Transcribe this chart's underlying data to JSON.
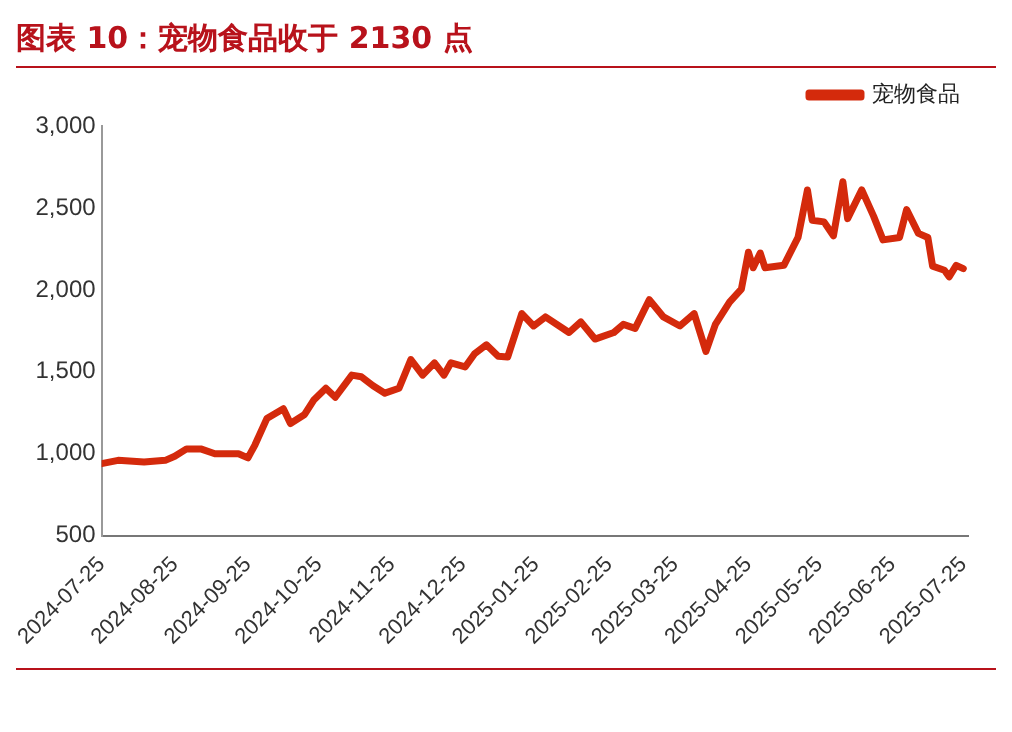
{
  "chart_data": {
    "type": "line",
    "title": "图表 10：宠物食品收于 2130 点",
    "series": [
      {
        "name": "宠物食品",
        "color": "#d42a0c",
        "x": [
          "2024-07-25",
          "2024-08-01",
          "2024-08-12",
          "2024-08-21",
          "2024-08-25",
          "2024-08-30",
          "2024-09-05",
          "2024-09-11",
          "2024-09-21",
          "2024-09-25",
          "2024-09-28",
          "2024-10-03",
          "2024-10-10",
          "2024-10-13",
          "2024-10-19",
          "2024-10-23",
          "2024-10-28",
          "2024-11-01",
          "2024-11-08",
          "2024-11-12",
          "2024-11-17",
          "2024-11-22",
          "2024-11-28",
          "2024-12-03",
          "2024-12-08",
          "2024-12-13",
          "2024-12-17",
          "2024-12-20",
          "2024-12-26",
          "2024-12-30",
          "2025-01-04",
          "2025-01-09",
          "2025-01-13",
          "2025-01-19",
          "2025-01-24",
          "2025-01-29",
          "2025-02-08",
          "2025-02-13",
          "2025-02-19",
          "2025-02-27",
          "2025-03-03",
          "2025-03-08",
          "2025-03-14",
          "2025-03-20",
          "2025-03-27",
          "2025-04-02",
          "2025-04-07",
          "2025-04-11",
          "2025-04-17",
          "2025-04-22",
          "2025-04-25",
          "2025-04-27",
          "2025-04-30",
          "2025-05-02",
          "2025-05-10",
          "2025-05-16",
          "2025-05-20",
          "2025-05-22",
          "2025-05-27",
          "2025-05-31",
          "2025-06-04",
          "2025-06-06",
          "2025-06-12",
          "2025-06-17",
          "2025-06-21",
          "2025-06-28",
          "2025-07-01",
          "2025-07-06",
          "2025-07-10",
          "2025-07-12",
          "2025-07-17",
          "2025-07-19",
          "2025-07-22",
          "2025-07-25"
        ],
        "values": [
          940,
          960,
          950,
          960,
          985,
          1030,
          1030,
          1000,
          1000,
          975,
          1055,
          1215,
          1275,
          1185,
          1240,
          1330,
          1400,
          1345,
          1480,
          1470,
          1415,
          1370,
          1400,
          1575,
          1480,
          1555,
          1480,
          1555,
          1530,
          1610,
          1665,
          1595,
          1590,
          1855,
          1780,
          1835,
          1740,
          1805,
          1700,
          1740,
          1790,
          1765,
          1940,
          1835,
          1780,
          1855,
          1625,
          1790,
          1925,
          2005,
          2230,
          2135,
          2225,
          2135,
          2150,
          2320,
          2610,
          2425,
          2415,
          2330,
          2660,
          2435,
          2610,
          2450,
          2305,
          2320,
          2490,
          2345,
          2320,
          2145,
          2120,
          2080,
          2150,
          2130
        ]
      }
    ],
    "xlim": [
      "2024-07-25",
      "2025-07-27"
    ],
    "xticks": [
      "2024-07-25",
      "2024-08-25",
      "2024-09-25",
      "2024-10-25",
      "2024-11-25",
      "2024-12-25",
      "2025-01-25",
      "2025-02-25",
      "2025-03-25",
      "2025-04-25",
      "2025-05-25",
      "2025-06-25",
      "2025-07-25"
    ],
    "ylim": [
      500,
      3000
    ],
    "yticks": [
      {
        "value": 500,
        "label": "500"
      },
      {
        "value": 1000,
        "label": "1,000"
      },
      {
        "value": 1500,
        "label": "1,500"
      },
      {
        "value": 2000,
        "label": "2,000"
      },
      {
        "value": 2500,
        "label": "2,500"
      },
      {
        "value": 3000,
        "label": "3,000"
      }
    ],
    "grid": false,
    "legend": "top right",
    "marker": "none",
    "line_style": "solid"
  }
}
